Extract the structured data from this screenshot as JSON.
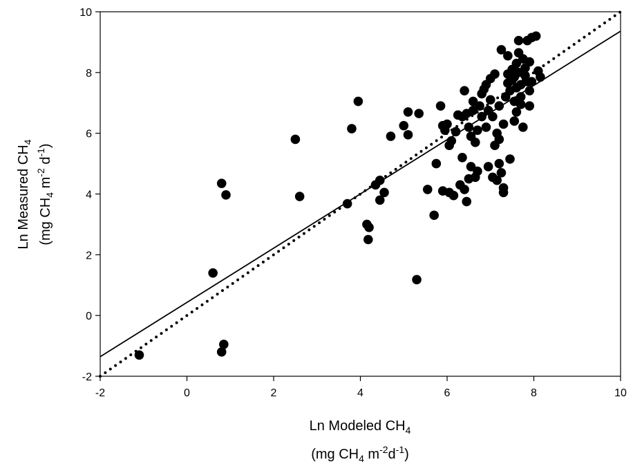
{
  "chart_data": {
    "type": "scatter",
    "title": "",
    "xlabel": {
      "line1": "Ln Modeled CH",
      "line1_sub": "4",
      "line2_prefix": "(mg CH",
      "line2_sub": "4",
      "line2_mid": " m",
      "line2_sup1": "-2",
      "line2_mid2": "d",
      "line2_sup2": "-1",
      "line2_suffix": ")"
    },
    "ylabel": {
      "line1": "Ln Measured CH",
      "line1_sub": "4",
      "line2_prefix": "(mg CH",
      "line2_sub": "4",
      "line2_mid": " m",
      "line2_sup1": "-2",
      "line2_mid2": " d",
      "line2_sup2": "-1",
      "line2_suffix": ")"
    },
    "xlim": [
      -2,
      10
    ],
    "ylim": [
      -2,
      10
    ],
    "xticks": [
      "-2",
      "0",
      "2",
      "4",
      "6",
      "8",
      "10"
    ],
    "yticks": [
      "-2",
      "0",
      "2",
      "4",
      "6",
      "8",
      "10"
    ],
    "grid": false,
    "legend": "none",
    "marker_color": "#000000",
    "lines": [
      {
        "style": "solid",
        "slope": 0.893,
        "intercept": 0.43
      },
      {
        "style": "dotted",
        "slope": 1.0,
        "intercept": 0.0
      }
    ],
    "points": [
      [
        -1.1,
        -1.3
      ],
      [
        0.6,
        1.4
      ],
      [
        0.8,
        -1.2
      ],
      [
        0.85,
        -0.95
      ],
      [
        0.8,
        4.35
      ],
      [
        0.9,
        3.97
      ],
      [
        2.5,
        5.8
      ],
      [
        2.6,
        3.92
      ],
      [
        3.7,
        3.68
      ],
      [
        3.8,
        6.15
      ],
      [
        3.95,
        7.05
      ],
      [
        4.15,
        3.0
      ],
      [
        4.2,
        2.9
      ],
      [
        4.18,
        2.5
      ],
      [
        4.35,
        4.3
      ],
      [
        4.45,
        4.45
      ],
      [
        4.45,
        3.8
      ],
      [
        4.55,
        4.05
      ],
      [
        4.7,
        5.9
      ],
      [
        5.0,
        6.25
      ],
      [
        5.1,
        5.95
      ],
      [
        5.1,
        6.7
      ],
      [
        5.35,
        6.65
      ],
      [
        5.3,
        1.18
      ],
      [
        5.55,
        4.15
      ],
      [
        5.7,
        3.3
      ],
      [
        5.75,
        5.0
      ],
      [
        5.85,
        6.9
      ],
      [
        5.9,
        4.1
      ],
      [
        5.9,
        6.25
      ],
      [
        5.95,
        6.1
      ],
      [
        6.0,
        6.3
      ],
      [
        6.05,
        4.05
      ],
      [
        6.05,
        5.6
      ],
      [
        6.1,
        5.75
      ],
      [
        6.15,
        3.95
      ],
      [
        6.2,
        6.05
      ],
      [
        6.25,
        6.6
      ],
      [
        6.3,
        4.3
      ],
      [
        6.35,
        6.55
      ],
      [
        6.35,
        5.2
      ],
      [
        6.4,
        4.15
      ],
      [
        6.4,
        7.4
      ],
      [
        6.45,
        3.75
      ],
      [
        6.45,
        6.65
      ],
      [
        6.5,
        4.5
      ],
      [
        6.5,
        6.2
      ],
      [
        6.55,
        5.9
      ],
      [
        6.55,
        4.9
      ],
      [
        6.6,
        6.75
      ],
      [
        6.6,
        7.05
      ],
      [
        6.65,
        5.7
      ],
      [
        6.65,
        4.55
      ],
      [
        6.7,
        6.1
      ],
      [
        6.7,
        4.75
      ],
      [
        6.75,
        6.9
      ],
      [
        6.8,
        6.55
      ],
      [
        6.8,
        7.3
      ],
      [
        6.85,
        7.45
      ],
      [
        6.9,
        6.2
      ],
      [
        6.9,
        7.6
      ],
      [
        6.95,
        4.9
      ],
      [
        6.95,
        6.75
      ],
      [
        7.0,
        7.8
      ],
      [
        7.0,
        7.1
      ],
      [
        7.05,
        6.55
      ],
      [
        7.05,
        4.55
      ],
      [
        7.1,
        5.6
      ],
      [
        7.1,
        7.95
      ],
      [
        7.15,
        6.0
      ],
      [
        7.15,
        4.45
      ],
      [
        7.2,
        5.0
      ],
      [
        7.2,
        5.8
      ],
      [
        7.2,
        6.9
      ],
      [
        7.25,
        4.7
      ],
      [
        7.25,
        8.75
      ],
      [
        7.3,
        4.2
      ],
      [
        7.3,
        4.05
      ],
      [
        7.3,
        6.3
      ],
      [
        7.35,
        7.2
      ],
      [
        7.4,
        7.65
      ],
      [
        7.4,
        8.55
      ],
      [
        7.4,
        7.95
      ],
      [
        7.45,
        5.15
      ],
      [
        7.45,
        7.4
      ],
      [
        7.5,
        7.75
      ],
      [
        7.5,
        8.1
      ],
      [
        7.55,
        7.05
      ],
      [
        7.55,
        6.4
      ],
      [
        7.55,
        7.85
      ],
      [
        7.6,
        8.3
      ],
      [
        7.6,
        7.5
      ],
      [
        7.6,
        6.7
      ],
      [
        7.65,
        8.65
      ],
      [
        7.65,
        9.05
      ],
      [
        7.65,
        8.0
      ],
      [
        7.7,
        7.2
      ],
      [
        7.7,
        6.95
      ],
      [
        7.7,
        7.6
      ],
      [
        7.75,
        8.45
      ],
      [
        7.75,
        6.2
      ],
      [
        7.8,
        7.9
      ],
      [
        7.8,
        8.15
      ],
      [
        7.85,
        7.7
      ],
      [
        7.85,
        9.05
      ],
      [
        7.9,
        7.4
      ],
      [
        7.9,
        8.35
      ],
      [
        7.9,
        6.9
      ],
      [
        7.95,
        9.15
      ],
      [
        7.95,
        7.7
      ],
      [
        8.05,
        9.2
      ],
      [
        8.1,
        8.05
      ],
      [
        8.15,
        7.85
      ]
    ]
  }
}
